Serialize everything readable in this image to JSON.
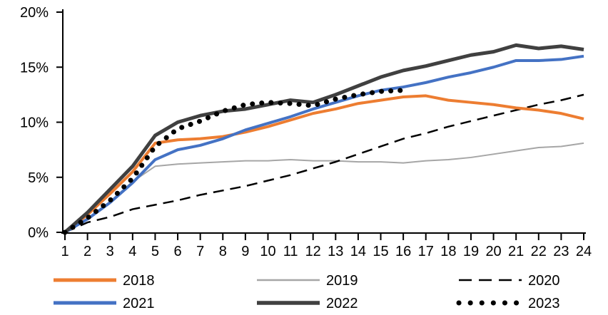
{
  "chart_data": {
    "type": "line",
    "title": "",
    "xlabel": "",
    "ylabel": "",
    "grid": false,
    "legend_position": "bottom",
    "axis_color": "#000000",
    "x": [
      1,
      2,
      3,
      4,
      5,
      6,
      7,
      8,
      9,
      10,
      11,
      12,
      13,
      14,
      15,
      16,
      17,
      18,
      19,
      20,
      21,
      22,
      23,
      24
    ],
    "x_tick_labels": [
      "1",
      "2",
      "3",
      "4",
      "5",
      "6",
      "7",
      "8",
      "9",
      "10",
      "11",
      "12",
      "13",
      "14",
      "15",
      "16",
      "17",
      "18",
      "19",
      "20",
      "21",
      "22",
      "23",
      "24"
    ],
    "y_ticks": [
      0,
      5,
      10,
      15,
      20
    ],
    "y_tick_labels": [
      "0%",
      "5%",
      "10%",
      "15%",
      "20%"
    ],
    "ylim": [
      0,
      20
    ],
    "xlim": [
      1,
      24
    ],
    "series": [
      {
        "name": "2019",
        "color": "#A6A6A6",
        "style": "solid-thin",
        "values": [
          0,
          1.2,
          2.8,
          4.6,
          6.0,
          6.2,
          6.3,
          6.4,
          6.5,
          6.5,
          6.6,
          6.5,
          6.5,
          6.4,
          6.4,
          6.3,
          6.5,
          6.6,
          6.8,
          7.1,
          7.4,
          7.7,
          7.8,
          8.1
        ]
      },
      {
        "name": "2020",
        "color": "#000000",
        "style": "dashed",
        "values": [
          0,
          0.9,
          1.4,
          2.1,
          2.5,
          2.9,
          3.4,
          3.8,
          4.2,
          4.7,
          5.2,
          5.8,
          6.4,
          7.1,
          7.8,
          8.5,
          9.0,
          9.6,
          10.1,
          10.6,
          11.1,
          11.6,
          12.0,
          12.5
        ]
      },
      {
        "name": "2018",
        "color": "#ED7D31",
        "style": "solid",
        "values": [
          0,
          1.6,
          3.5,
          5.5,
          8.1,
          8.4,
          8.5,
          8.7,
          9.1,
          9.6,
          10.2,
          10.8,
          11.2,
          11.7,
          12.0,
          12.3,
          12.4,
          12.0,
          11.8,
          11.6,
          11.3,
          11.1,
          10.8,
          10.3
        ]
      },
      {
        "name": "2021",
        "color": "#4472C4",
        "style": "solid",
        "values": [
          0,
          1.2,
          2.7,
          4.5,
          6.6,
          7.5,
          7.9,
          8.5,
          9.3,
          9.9,
          10.5,
          11.2,
          11.8,
          12.4,
          12.9,
          13.2,
          13.6,
          14.1,
          14.5,
          15.0,
          15.6,
          15.6,
          15.7,
          16.0
        ]
      },
      {
        "name": "2022",
        "color": "#404040",
        "style": "solid-thick",
        "values": [
          0,
          1.8,
          3.9,
          6.0,
          8.8,
          10.0,
          10.6,
          11.0,
          11.2,
          11.6,
          12.0,
          11.8,
          12.5,
          13.3,
          14.1,
          14.7,
          15.1,
          15.6,
          16.1,
          16.4,
          17.0,
          16.7,
          16.9,
          16.6
        ]
      },
      {
        "name": "2023",
        "color": "#000000",
        "style": "dotted",
        "values": [
          0,
          1.3,
          2.9,
          4.9,
          7.8,
          9.4,
          10.1,
          11.0,
          11.6,
          11.8,
          11.7,
          11.5,
          12.1,
          12.5,
          12.8,
          12.9
        ]
      }
    ],
    "legend": {
      "rows": [
        [
          "2018",
          "2019",
          "2020"
        ],
        [
          "2021",
          "2022",
          "2023"
        ]
      ]
    }
  }
}
